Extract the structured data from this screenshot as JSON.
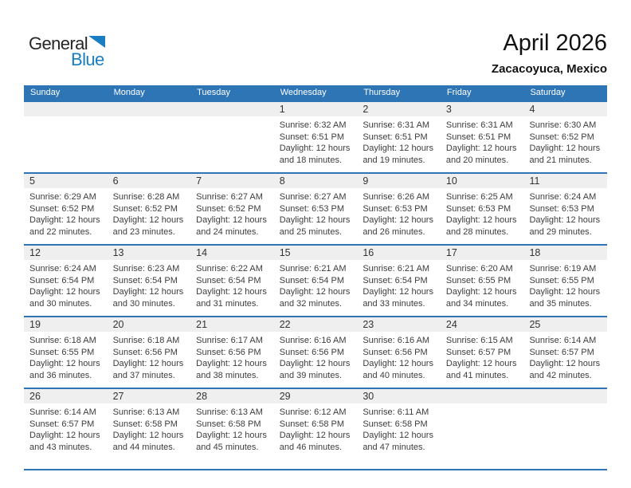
{
  "logo": {
    "general": "General",
    "blue": "Blue"
  },
  "header": {
    "title": "April 2026",
    "subtitle": "Zacacoyuca, Mexico"
  },
  "weekdays": [
    "Sunday",
    "Monday",
    "Tuesday",
    "Wednesday",
    "Thursday",
    "Friday",
    "Saturday"
  ],
  "weeks": [
    [
      null,
      null,
      null,
      {
        "day": "1",
        "lines": [
          "Sunrise: 6:32 AM",
          "Sunset: 6:51 PM",
          "Daylight: 12 hours",
          "and 18 minutes."
        ]
      },
      {
        "day": "2",
        "lines": [
          "Sunrise: 6:31 AM",
          "Sunset: 6:51 PM",
          "Daylight: 12 hours",
          "and 19 minutes."
        ]
      },
      {
        "day": "3",
        "lines": [
          "Sunrise: 6:31 AM",
          "Sunset: 6:51 PM",
          "Daylight: 12 hours",
          "and 20 minutes."
        ]
      },
      {
        "day": "4",
        "lines": [
          "Sunrise: 6:30 AM",
          "Sunset: 6:52 PM",
          "Daylight: 12 hours",
          "and 21 minutes."
        ]
      }
    ],
    [
      {
        "day": "5",
        "lines": [
          "Sunrise: 6:29 AM",
          "Sunset: 6:52 PM",
          "Daylight: 12 hours",
          "and 22 minutes."
        ]
      },
      {
        "day": "6",
        "lines": [
          "Sunrise: 6:28 AM",
          "Sunset: 6:52 PM",
          "Daylight: 12 hours",
          "and 23 minutes."
        ]
      },
      {
        "day": "7",
        "lines": [
          "Sunrise: 6:27 AM",
          "Sunset: 6:52 PM",
          "Daylight: 12 hours",
          "and 24 minutes."
        ]
      },
      {
        "day": "8",
        "lines": [
          "Sunrise: 6:27 AM",
          "Sunset: 6:53 PM",
          "Daylight: 12 hours",
          "and 25 minutes."
        ]
      },
      {
        "day": "9",
        "lines": [
          "Sunrise: 6:26 AM",
          "Sunset: 6:53 PM",
          "Daylight: 12 hours",
          "and 26 minutes."
        ]
      },
      {
        "day": "10",
        "lines": [
          "Sunrise: 6:25 AM",
          "Sunset: 6:53 PM",
          "Daylight: 12 hours",
          "and 28 minutes."
        ]
      },
      {
        "day": "11",
        "lines": [
          "Sunrise: 6:24 AM",
          "Sunset: 6:53 PM",
          "Daylight: 12 hours",
          "and 29 minutes."
        ]
      }
    ],
    [
      {
        "day": "12",
        "lines": [
          "Sunrise: 6:24 AM",
          "Sunset: 6:54 PM",
          "Daylight: 12 hours",
          "and 30 minutes."
        ]
      },
      {
        "day": "13",
        "lines": [
          "Sunrise: 6:23 AM",
          "Sunset: 6:54 PM",
          "Daylight: 12 hours",
          "and 30 minutes."
        ]
      },
      {
        "day": "14",
        "lines": [
          "Sunrise: 6:22 AM",
          "Sunset: 6:54 PM",
          "Daylight: 12 hours",
          "and 31 minutes."
        ]
      },
      {
        "day": "15",
        "lines": [
          "Sunrise: 6:21 AM",
          "Sunset: 6:54 PM",
          "Daylight: 12 hours",
          "and 32 minutes."
        ]
      },
      {
        "day": "16",
        "lines": [
          "Sunrise: 6:21 AM",
          "Sunset: 6:54 PM",
          "Daylight: 12 hours",
          "and 33 minutes."
        ]
      },
      {
        "day": "17",
        "lines": [
          "Sunrise: 6:20 AM",
          "Sunset: 6:55 PM",
          "Daylight: 12 hours",
          "and 34 minutes."
        ]
      },
      {
        "day": "18",
        "lines": [
          "Sunrise: 6:19 AM",
          "Sunset: 6:55 PM",
          "Daylight: 12 hours",
          "and 35 minutes."
        ]
      }
    ],
    [
      {
        "day": "19",
        "lines": [
          "Sunrise: 6:18 AM",
          "Sunset: 6:55 PM",
          "Daylight: 12 hours",
          "and 36 minutes."
        ]
      },
      {
        "day": "20",
        "lines": [
          "Sunrise: 6:18 AM",
          "Sunset: 6:56 PM",
          "Daylight: 12 hours",
          "and 37 minutes."
        ]
      },
      {
        "day": "21",
        "lines": [
          "Sunrise: 6:17 AM",
          "Sunset: 6:56 PM",
          "Daylight: 12 hours",
          "and 38 minutes."
        ]
      },
      {
        "day": "22",
        "lines": [
          "Sunrise: 6:16 AM",
          "Sunset: 6:56 PM",
          "Daylight: 12 hours",
          "and 39 minutes."
        ]
      },
      {
        "day": "23",
        "lines": [
          "Sunrise: 6:16 AM",
          "Sunset: 6:56 PM",
          "Daylight: 12 hours",
          "and 40 minutes."
        ]
      },
      {
        "day": "24",
        "lines": [
          "Sunrise: 6:15 AM",
          "Sunset: 6:57 PM",
          "Daylight: 12 hours",
          "and 41 minutes."
        ]
      },
      {
        "day": "25",
        "lines": [
          "Sunrise: 6:14 AM",
          "Sunset: 6:57 PM",
          "Daylight: 12 hours",
          "and 42 minutes."
        ]
      }
    ],
    [
      {
        "day": "26",
        "lines": [
          "Sunrise: 6:14 AM",
          "Sunset: 6:57 PM",
          "Daylight: 12 hours",
          "and 43 minutes."
        ]
      },
      {
        "day": "27",
        "lines": [
          "Sunrise: 6:13 AM",
          "Sunset: 6:58 PM",
          "Daylight: 12 hours",
          "and 44 minutes."
        ]
      },
      {
        "day": "28",
        "lines": [
          "Sunrise: 6:13 AM",
          "Sunset: 6:58 PM",
          "Daylight: 12 hours",
          "and 45 minutes."
        ]
      },
      {
        "day": "29",
        "lines": [
          "Sunrise: 6:12 AM",
          "Sunset: 6:58 PM",
          "Daylight: 12 hours",
          "and 46 minutes."
        ]
      },
      {
        "day": "30",
        "lines": [
          "Sunrise: 6:11 AM",
          "Sunset: 6:58 PM",
          "Daylight: 12 hours",
          "and 47 minutes."
        ]
      },
      null,
      null
    ]
  ],
  "colors": {
    "header_blue": "#2E75B6",
    "date_strip_gray": "#EFEFEF",
    "logo_blue": "#1A7DC2",
    "detail_text": "#3D3D3D"
  }
}
